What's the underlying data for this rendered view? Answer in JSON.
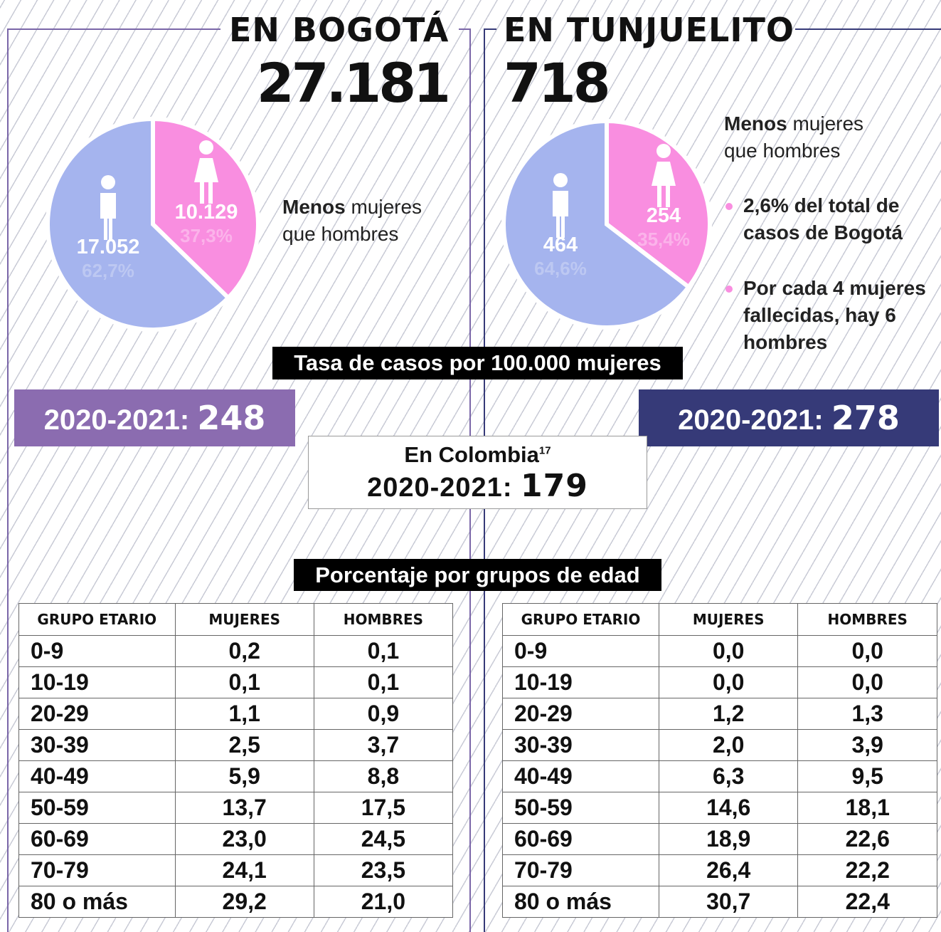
{
  "bogota": {
    "title": "EN BOGOTÁ",
    "total": "27.181",
    "pie": {
      "values": [
        10129,
        17052
      ],
      "value_labels": [
        "10.129",
        "17.052"
      ],
      "percents": [
        37.3,
        62.7
      ],
      "percent_labels": [
        "37,3%",
        "62,7%"
      ]
    },
    "note": {
      "bold": "Menos",
      "rest": "mujeres que hombres"
    },
    "rate": {
      "label": "2020-2021:",
      "value": "248"
    },
    "table": {
      "headers": [
        "GRUPO ETARIO",
        "MUJERES",
        "HOMBRES"
      ],
      "rows": [
        [
          "0-9",
          "0,2",
          "0,1"
        ],
        [
          "10-19",
          "0,1",
          "0,1"
        ],
        [
          "20-29",
          "1,1",
          "0,9"
        ],
        [
          "30-39",
          "2,5",
          "3,7"
        ],
        [
          "40-49",
          "5,9",
          "8,8"
        ],
        [
          "50-59",
          "13,7",
          "17,5"
        ],
        [
          "60-69",
          "23,0",
          "24,5"
        ],
        [
          "70-79",
          "24,1",
          "23,5"
        ],
        [
          "80 o más",
          "29,2",
          "21,0"
        ]
      ]
    }
  },
  "tunjuelito": {
    "title": "EN TUNJUELITO",
    "total": "718",
    "pie": {
      "values": [
        254,
        464
      ],
      "percents": [
        35.4,
        64.6
      ],
      "percent_labels": [
        "35,4%",
        "64,6%"
      ]
    },
    "note": {
      "bold": "Menos",
      "rest": "mujeres que hombres"
    },
    "bullets": [
      "2,6% del total de casos de Bogotá",
      "Por cada 4 mujeres fallecidas, hay 6 hombres"
    ],
    "rate": {
      "label": "2020-2021:",
      "value": "278"
    },
    "table": {
      "headers": [
        "GRUPO ETARIO",
        "MUJERES",
        "HOMBRES"
      ],
      "rows": [
        [
          "0-9",
          "0,0",
          "0,0"
        ],
        [
          "10-19",
          "0,0",
          "0,0"
        ],
        [
          "20-29",
          "1,2",
          "1,3"
        ],
        [
          "30-39",
          "2,0",
          "3,9"
        ],
        [
          "40-49",
          "6,3",
          "9,5"
        ],
        [
          "50-59",
          "14,6",
          "18,1"
        ],
        [
          "60-69",
          "18,9",
          "22,6"
        ],
        [
          "70-79",
          "26,4",
          "22,2"
        ],
        [
          "80 o más",
          "30,7",
          "22,4"
        ]
      ]
    }
  },
  "rate_title": "Tasa de casos por 100.000 mujeres",
  "colombia": {
    "title": "En Colombia",
    "footnote": "17",
    "label": "2020-2021:",
    "value": "179"
  },
  "age_title": "Porcentaje por grupos de edad"
}
